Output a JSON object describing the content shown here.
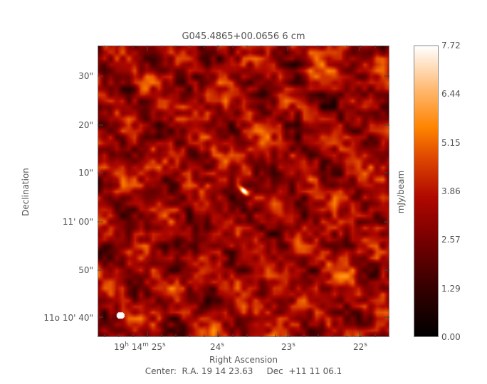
{
  "chart_data": {
    "type": "heatmap",
    "title": "G045.4865+00.0656 6 cm",
    "xlabel": "Right Ascension",
    "ylabel": "Declination",
    "x_ticks": [
      {
        "h": "19",
        "m": "14",
        "s": "25"
      },
      {
        "s": "24"
      },
      {
        "s": "23"
      },
      {
        "s": "22"
      }
    ],
    "y_ticks": [
      "30\"",
      "20\"",
      "10\"",
      "11' 00\"",
      "50\"",
      "11o 10' 40\""
    ],
    "y_tick_parts": {
      "deg": "11",
      "deg_sup": "o",
      "rest": " 10' 40\""
    },
    "colorbar": {
      "label": "mJy/beam",
      "ticks": [
        "7.72",
        "6.44",
        "5.15",
        "3.86",
        "2.57",
        "1.29",
        "0.00"
      ],
      "range": [
        0.0,
        7.72
      ],
      "colormap": "heat (black-red-orange-white)"
    },
    "footer": "Center:  R.A. 19 14 23.63     Dec  +11 11 06.1",
    "annotations": [
      "bright compact source near center",
      "beam ellipse lower-left (white)"
    ]
  }
}
